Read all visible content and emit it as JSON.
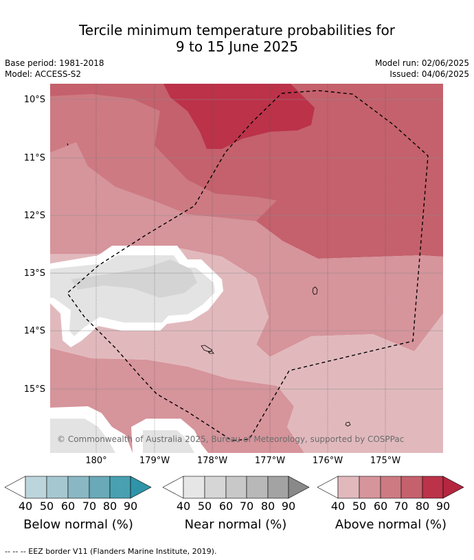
{
  "title_line1": "Tercile minimum temperature probabilities for",
  "title_line2": "9 to 15 June 2025",
  "base_period": "Base period: 1981-2018",
  "model": "Model: ACCESS-S2",
  "model_run": "Model run: 02/06/2025",
  "issued": "Issued: 04/06/2025",
  "lat_labels": [
    "10°S",
    "11°S",
    "12°S",
    "13°S",
    "14°S",
    "15°S"
  ],
  "lon_labels": [
    "180°",
    "179°W",
    "178°W",
    "177°W",
    "176°W",
    "175°W"
  ],
  "copyright": "© Commonwealth of Australia 2025, Bureau of Meteorology, supported by COSPPac",
  "colorbars": {
    "below": {
      "title": "Below normal (%)",
      "ticks": [
        "40",
        "50",
        "60",
        "70",
        "80",
        "90"
      ],
      "colors": [
        "#bcd4dc",
        "#a5c7cf",
        "#89b7c3",
        "#6aa9b7",
        "#48a0b1",
        "#2f94a8"
      ]
    },
    "near": {
      "title": "Near normal (%)",
      "ticks": [
        "40",
        "50",
        "60",
        "70",
        "80",
        "90"
      ],
      "colors": [
        "#e6e6e6",
        "#d6d6d6",
        "#c8c8c8",
        "#b8b8b8",
        "#a3a3a3",
        "#898989"
      ]
    },
    "above": {
      "title": "Above normal (%)",
      "ticks": [
        "40",
        "50",
        "60",
        "70",
        "80",
        "90"
      ],
      "colors": [
        "#e1b9bd",
        "#d6949b",
        "#cd7a83",
        "#c4616c",
        "#bb3249",
        "#b5263f"
      ]
    }
  },
  "footnote": "--  --  -- EEZ border V11 (Flanders Marine Institute, 2019)."
}
